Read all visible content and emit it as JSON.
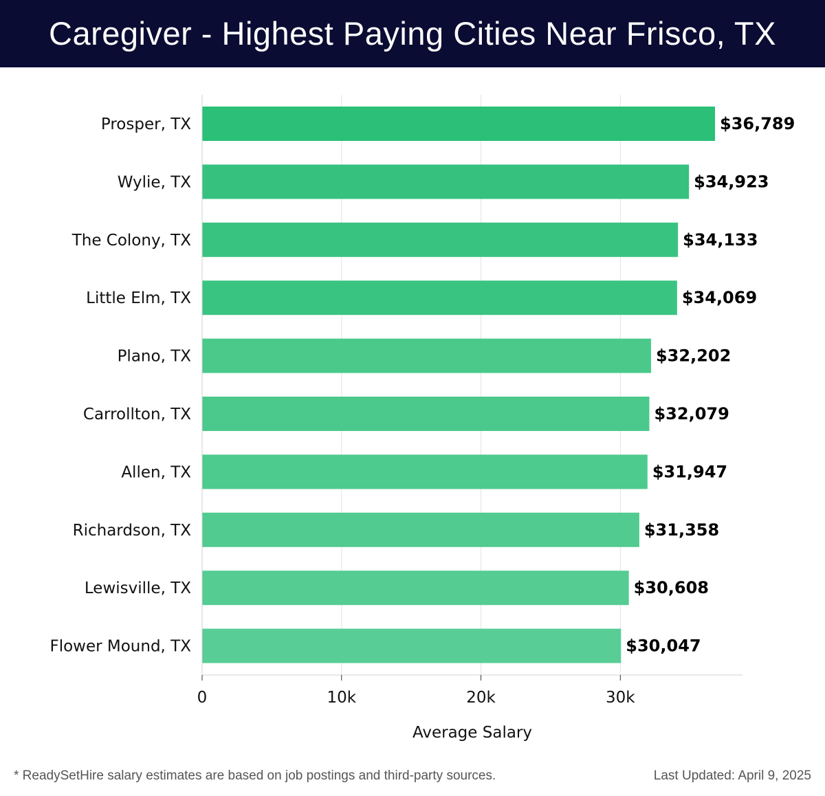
{
  "header": {
    "title": "Caregiver - Highest Paying Cities Near Frisco, TX"
  },
  "chart_data": {
    "type": "bar",
    "orientation": "horizontal",
    "title": "Caregiver - Highest Paying Cities Near Frisco, TX",
    "xlabel": "Average Salary",
    "ylabel": "",
    "xlim": [
      0,
      38600
    ],
    "xticks": [
      0,
      10000,
      20000,
      30000
    ],
    "xtick_labels": [
      "0",
      "10k",
      "20k",
      "30k"
    ],
    "grid": "vertical gridlines on",
    "categories": [
      "Prosper, TX",
      "Wylie, TX",
      "The Colony, TX",
      "Little Elm, TX",
      "Plano, TX",
      "Carrollton, TX",
      "Allen, TX",
      "Richardson, TX",
      "Lewisville, TX",
      "Flower Mound, TX"
    ],
    "values": [
      36789,
      34923,
      34133,
      34069,
      32202,
      32079,
      31947,
      31358,
      30608,
      30047
    ],
    "value_labels": [
      "$36,789",
      "$34,923",
      "$34,133",
      "$34,069",
      "$32,202",
      "$32,079",
      "$31,947",
      "$31,358",
      "$30,608",
      "$30,047"
    ],
    "colors": [
      "#2bbf78",
      "#36c17f",
      "#39c381",
      "#3ac482",
      "#4ac98b",
      "#4bc98c",
      "#4dca8d",
      "#51cb90",
      "#54cc92",
      "#58cd95"
    ]
  },
  "footer": {
    "note": "* ReadySetHire salary estimates are based on job postings and third-party sources.",
    "updated": "Last Updated: April 9, 2025"
  }
}
